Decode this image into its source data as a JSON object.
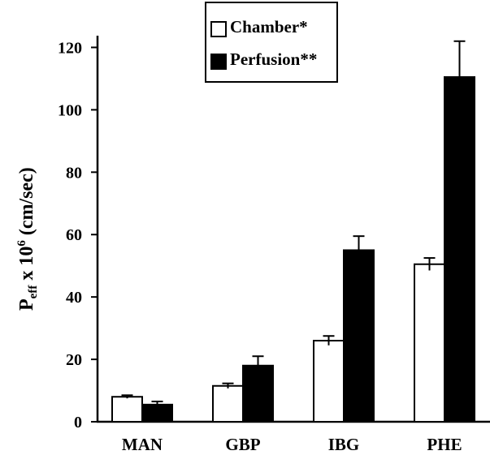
{
  "chart_data": {
    "type": "bar",
    "categories": [
      "MAN",
      "GBP",
      "IBG",
      "PHE"
    ],
    "series": [
      {
        "name": "Chamber*",
        "values": [
          8,
          11.5,
          26,
          50.5
        ],
        "errors": [
          0.5,
          0.8,
          1.5,
          2
        ],
        "fill": "#ffffff"
      },
      {
        "name": "Perfusion**",
        "values": [
          5.5,
          18,
          55,
          110.5
        ],
        "errors": [
          1,
          3,
          4.5,
          11.5
        ],
        "fill": "#000000"
      }
    ],
    "ylabel": "P",
    "ylabel_sub": "eff",
    "ylabel_mid": " x 10",
    "ylabel_sup": "6",
    "ylabel_unit": " (cm/sec)",
    "ylim": [
      0,
      130
    ],
    "yticks": [
      0,
      20,
      40,
      60,
      80,
      100,
      120
    ],
    "legend_position": "top-center",
    "grid": false
  }
}
